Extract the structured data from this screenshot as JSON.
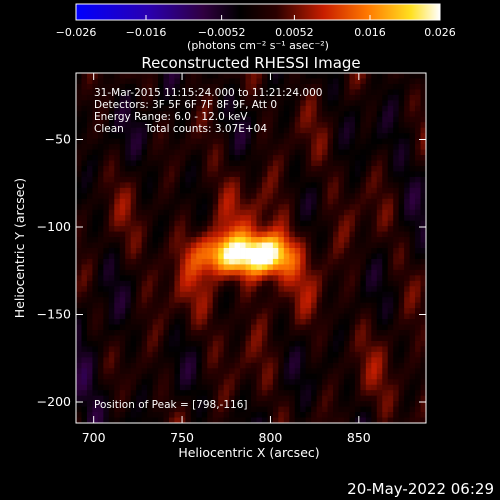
{
  "chart_data": {
    "type": "heatmap",
    "title": "Reconstructed RHESSI Image",
    "xlabel": "Heliocentric X (arcsec)",
    "ylabel": "Heliocentric Y (arcsec)",
    "xlim": [
      690,
      888
    ],
    "ylim": [
      -212,
      -12
    ],
    "x_ticks": [
      700,
      750,
      800,
      850
    ],
    "y_ticks": [
      -50,
      -100,
      -150,
      -200
    ],
    "colorbar": {
      "range": [
        -0.026,
        0.026
      ],
      "ticks": [
        "−0.026",
        "−0.016",
        "−0.0052",
        "0.0052",
        "0.016",
        "0.026"
      ],
      "tick_values": [
        -0.026,
        -0.016,
        -0.0052,
        0.0052,
        0.016,
        0.026
      ],
      "unit_label": "(photons cm⁻² s⁻¹ asec⁻²)",
      "colormap": "blue-black-red-yellow-white"
    },
    "annotations": {
      "time_range": "31-Mar-2015 11:15:24.000 to 11:21:24.000",
      "detectors": "Detectors: 3F 5F 6F 7F 8F 9F, Att 0",
      "energy_range": "Energy Range: 6.0 - 12.0 keV",
      "clean": "Clean",
      "total_counts": "Total counts: 3.07E+04",
      "peak_position": "Position of Peak = [798,-116]"
    },
    "source": {
      "peak_x": 798,
      "peak_y": -116,
      "secondary_x": 775,
      "secondary_y": -116,
      "peak_value": 0.026
    },
    "footer_date": "20-May-2022 06:29"
  }
}
